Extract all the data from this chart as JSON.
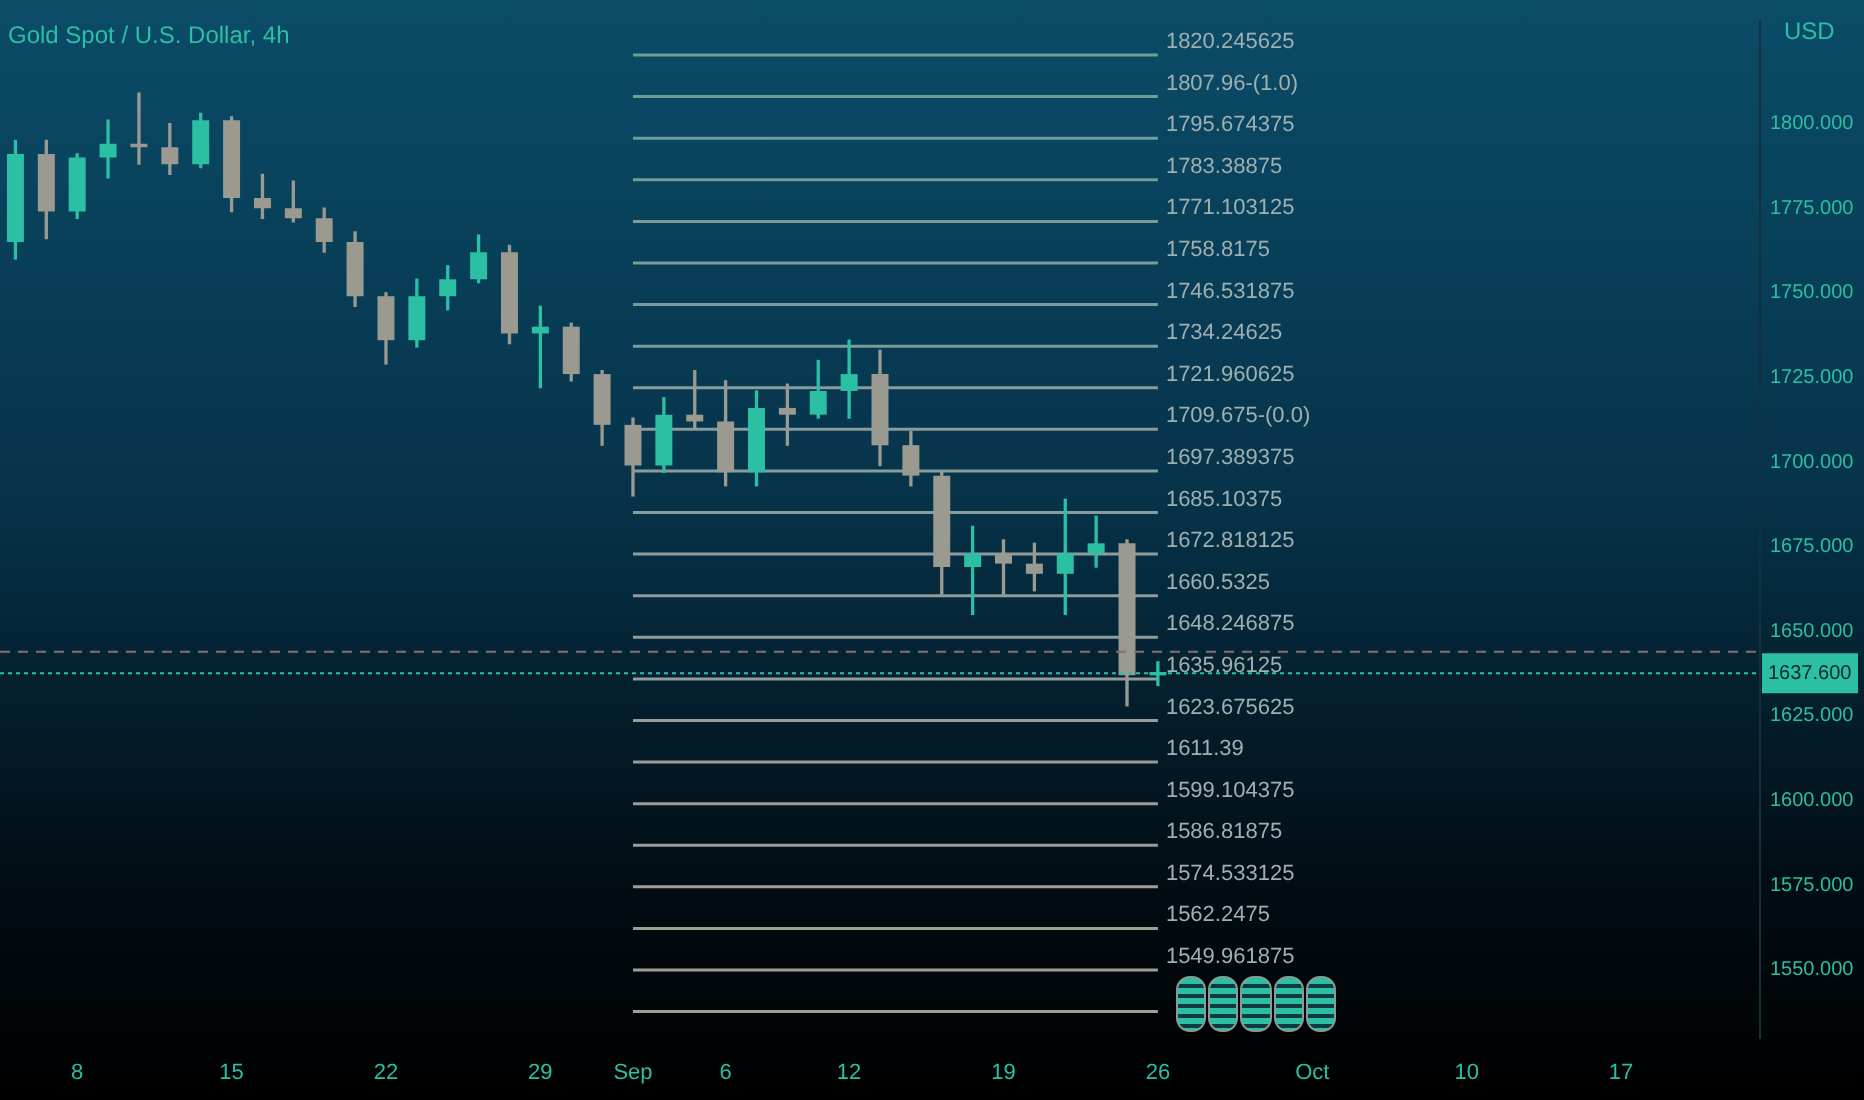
{
  "chart_data": {
    "type": "candlestick",
    "title": "Gold Spot / U.S. Dollar, 4h",
    "ylabel": "USD",
    "categories": [
      null,
      null,
      "8",
      null,
      null,
      null,
      null,
      "15",
      null,
      null,
      null,
      null,
      "22",
      null,
      null,
      null,
      null,
      "29",
      null,
      null,
      "Sep",
      null,
      null,
      "6",
      null,
      null,
      null,
      "12",
      null,
      null,
      null,
      null,
      "19",
      null,
      null,
      null,
      null,
      "26",
      null,
      null,
      null,
      null,
      "Oct",
      null,
      null,
      null,
      null,
      "10",
      null,
      null,
      null,
      null,
      "17",
      null,
      null,
      null,
      null
    ],
    "ohlc": [
      [
        1765,
        1795,
        1760,
        1791
      ],
      [
        1791,
        1795,
        1766,
        1774
      ],
      [
        1774,
        1791,
        1772,
        1790
      ],
      [
        1790,
        1801,
        1784,
        1794
      ],
      [
        1794,
        1809,
        1788,
        1793
      ],
      [
        1793,
        1800,
        1785,
        1788
      ],
      [
        1788,
        1803,
        1787,
        1801
      ],
      [
        1801,
        1802,
        1774,
        1778
      ],
      [
        1778,
        1785,
        1772,
        1775
      ],
      [
        1775,
        1783,
        1771,
        1772
      ],
      [
        1772,
        1775,
        1762,
        1765
      ],
      [
        1765,
        1768,
        1746,
        1749
      ],
      [
        1749,
        1750,
        1729,
        1736
      ],
      [
        1736,
        1754,
        1734,
        1749
      ],
      [
        1749,
        1758,
        1745,
        1754
      ],
      [
        1754,
        1767,
        1753,
        1762
      ],
      [
        1762,
        1764,
        1735,
        1738
      ],
      [
        1738,
        1746,
        1722,
        1740
      ],
      [
        1740,
        1741,
        1724,
        1726
      ],
      [
        1726,
        1727,
        1705,
        1711
      ],
      [
        1711,
        1713,
        1690,
        1699
      ],
      [
        1699,
        1719,
        1697,
        1714
      ],
      [
        1714,
        1727,
        1710,
        1712
      ],
      [
        1712,
        1724,
        1693,
        1697
      ],
      [
        1697,
        1721,
        1693,
        1716
      ],
      [
        1716,
        1723,
        1705,
        1714
      ],
      [
        1714,
        1730,
        1713,
        1721
      ],
      [
        1721,
        1736,
        1713,
        1726
      ],
      [
        1726,
        1733,
        1699,
        1705
      ],
      [
        1705,
        1709,
        1693,
        1696
      ],
      [
        1696,
        1697,
        1661,
        1669
      ],
      [
        1669,
        1681,
        1655,
        1673
      ],
      [
        1673,
        1677,
        1661,
        1670
      ],
      [
        1670,
        1676,
        1662,
        1667
      ],
      [
        1667,
        1689,
        1655,
        1673
      ],
      [
        1673,
        1684,
        1669,
        1676
      ],
      [
        1676,
        1677,
        1628,
        1637
      ],
      [
        1637,
        1641,
        1634,
        1638
      ],
      null,
      null,
      null,
      null,
      null,
      null,
      null,
      null,
      null,
      null,
      null,
      null,
      null,
      null,
      null,
      null,
      null,
      null,
      null
    ],
    "colors": [
      "#2bbfa4",
      "#9a9a90",
      "#2bbfa4",
      "#2bbfa4",
      "#9a9a90",
      "#9a9a90",
      "#2bbfa4",
      "#9a9a90",
      "#9a9a90",
      "#9a9a90",
      "#9a9a90",
      "#9a9a90",
      "#9a9a90",
      "#2bbfa4",
      "#2bbfa4",
      "#2bbfa4",
      "#9a9a90",
      "#2bbfa4",
      "#9a9a90",
      "#9a9a90",
      "#9a9a90",
      "#2bbfa4",
      "#9a9a90",
      "#9a9a90",
      "#2bbfa4",
      "#9a9a90",
      "#2bbfa4",
      "#2bbfa4",
      "#9a9a90",
      "#9a9a90",
      "#9a9a90",
      "#2bbfa4",
      "#9a9a90",
      "#9a9a90",
      "#2bbfa4",
      "#2bbfa4",
      "#9a9a90",
      "#2bbfa4",
      null,
      null,
      null,
      null,
      null,
      null,
      null,
      null,
      null,
      null,
      null,
      null,
      null,
      null,
      null,
      null,
      null,
      null,
      null
    ],
    "series": [
      {
        "type": "line",
        "name": "1820.245625",
        "color": "#6f9e98",
        "x": [
          "Sep",
          "26"
        ],
        "values": [
          1820.245625,
          1820.245625
        ]
      },
      {
        "type": "line",
        "name": "1807.96-(1.0)",
        "color": "#6f9e98",
        "x": [
          "Sep",
          "26"
        ],
        "values": [
          1807.96,
          1807.96
        ]
      },
      {
        "type": "line",
        "name": "1795.674375",
        "color": "#6f9e98",
        "x": [
          "Sep",
          "26"
        ],
        "values": [
          1795.674375,
          1795.674375
        ]
      },
      {
        "type": "line",
        "name": "1783.38875",
        "color": "#6f9e98",
        "x": [
          "Sep",
          "26"
        ],
        "values": [
          1783.38875,
          1783.38875
        ]
      },
      {
        "type": "line",
        "name": "1771.103125",
        "color": "#7a9c9a",
        "x": [
          "Sep",
          "26"
        ],
        "values": [
          1771.103125,
          1771.103125
        ]
      },
      {
        "type": "line",
        "name": "1758.8175",
        "color": "#7a9c9a",
        "x": [
          "Sep",
          "26"
        ],
        "values": [
          1758.8175,
          1758.8175
        ]
      },
      {
        "type": "line",
        "name": "1746.531875",
        "color": "#7a9c9a",
        "x": [
          "Sep",
          "26"
        ],
        "values": [
          1746.531875,
          1746.531875
        ]
      },
      {
        "type": "line",
        "name": "1734.24625",
        "color": "#7a9c9a",
        "x": [
          "Sep",
          "26"
        ],
        "values": [
          1734.24625,
          1734.24625
        ]
      },
      {
        "type": "line",
        "name": "1721.960625",
        "color": "#889c9c",
        "x": [
          "Sep",
          "26"
        ],
        "values": [
          1721.960625,
          1721.960625
        ]
      },
      {
        "type": "line",
        "name": "1709.675-(0.0)",
        "color": "#889c9c",
        "x": [
          "Sep",
          "26"
        ],
        "values": [
          1709.675,
          1709.675
        ]
      },
      {
        "type": "line",
        "name": "1697.389375",
        "color": "#889c9c",
        "x": [
          "Sep",
          "26"
        ],
        "values": [
          1697.389375,
          1697.389375
        ]
      },
      {
        "type": "line",
        "name": "1685.10375",
        "color": "#889c9c",
        "x": [
          "Sep",
          "26"
        ],
        "values": [
          1685.10375,
          1685.10375
        ]
      },
      {
        "type": "line",
        "name": "1672.818125",
        "color": "#909c9c",
        "x": [
          "Sep",
          "26"
        ],
        "values": [
          1672.818125,
          1672.818125
        ]
      },
      {
        "type": "line",
        "name": "1660.5325",
        "color": "#909c9c",
        "x": [
          "Sep",
          "26"
        ],
        "values": [
          1660.5325,
          1660.5325
        ]
      },
      {
        "type": "line",
        "name": "1648.246875",
        "color": "#909c9c",
        "x": [
          "Sep",
          "26"
        ],
        "values": [
          1648.246875,
          1648.246875
        ]
      },
      {
        "type": "line",
        "name": "1635.96125",
        "color": "#909c9c",
        "x": [
          "Sep",
          "26"
        ],
        "values": [
          1635.96125,
          1635.96125
        ]
      },
      {
        "type": "line",
        "name": "1623.675625",
        "color": "#9a9c98",
        "x": [
          "Sep",
          "26"
        ],
        "values": [
          1623.675625,
          1623.675625
        ]
      },
      {
        "type": "line",
        "name": "1611.39",
        "color": "#9a9c98",
        "x": [
          "Sep",
          "26"
        ],
        "values": [
          1611.39,
          1611.39
        ]
      },
      {
        "type": "line",
        "name": "1599.104375",
        "color": "#9a9c98",
        "x": [
          "Sep",
          "26"
        ],
        "values": [
          1599.104375,
          1599.104375
        ]
      },
      {
        "type": "line",
        "name": "1586.81875",
        "color": "#9a9c98",
        "x": [
          "Sep",
          "26"
        ],
        "values": [
          1586.81875,
          1586.81875
        ]
      },
      {
        "type": "line",
        "name": "1574.533125",
        "color": "#a09e92",
        "x": [
          "Sep",
          "26"
        ],
        "values": [
          1574.533125,
          1574.533125
        ]
      },
      {
        "type": "line",
        "name": "1562.2475",
        "color": "#a09e92",
        "x": [
          "Sep",
          "26"
        ],
        "values": [
          1562.2475,
          1562.2475
        ]
      },
      {
        "type": "line",
        "name": "1549.961875",
        "color": "#a09e92",
        "x": [
          "Sep",
          "26"
        ],
        "values": [
          1549.961875,
          1549.961875
        ]
      },
      {
        "type": "line",
        "color": "#a09e92",
        "x": [
          "Sep",
          "26"
        ],
        "values": [
          1537.67625,
          1537.67625
        ]
      }
    ],
    "ylim": [
      1530,
      1830
    ],
    "yticks": [
      {
        "value": 1550,
        "label": "1550.000"
      },
      {
        "value": 1575,
        "label": "1575.000"
      },
      {
        "value": 1600,
        "label": "1600.000"
      },
      {
        "value": 1625,
        "label": "1625.000"
      },
      {
        "value": 1650,
        "label": "1650.000"
      },
      {
        "value": 1675,
        "label": "1675.000"
      },
      {
        "value": 1700,
        "label": "1700.000"
      },
      {
        "value": 1725,
        "label": "1725.000"
      },
      {
        "value": 1750,
        "label": "1750.000"
      },
      {
        "value": 1775,
        "label": "1775.000"
      },
      {
        "value": 1800,
        "label": "1800.000"
      }
    ],
    "ref_lines": [
      {
        "axis": "y",
        "value": 1644,
        "label": null,
        "color": "#8a6e6e",
        "line_style": "dashed"
      },
      {
        "axis": "y",
        "value": 1637.6,
        "label": "1637.600",
        "color": "#2bbfa4",
        "line_style": "dotted"
      }
    ]
  }
}
